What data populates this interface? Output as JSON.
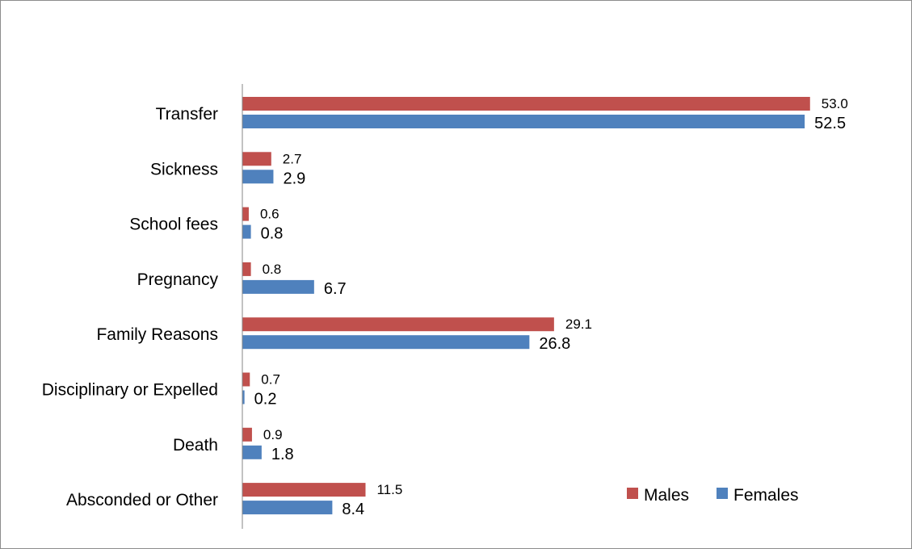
{
  "chart_data": {
    "type": "bar",
    "orientation": "horizontal",
    "categories": [
      "Transfer",
      "Sickness",
      "School fees",
      "Pregnancy",
      "Family Reasons",
      "Disciplinary or Expelled",
      "Death",
      "Absconded or Other"
    ],
    "series": [
      {
        "name": "Males",
        "color": "#c0504d",
        "values": [
          53.0,
          2.7,
          0.6,
          0.8,
          29.1,
          0.7,
          0.9,
          11.5
        ]
      },
      {
        "name": "Females",
        "color": "#4f81bd",
        "values": [
          52.5,
          2.9,
          0.8,
          6.7,
          26.8,
          0.2,
          1.8,
          8.4
        ]
      }
    ],
    "value_labels": {
      "Males": [
        "53.0",
        "2.7",
        "0.6",
        "0.8",
        "29.1",
        "0.7",
        "0.9",
        "11.5"
      ],
      "Females": [
        "52.5",
        "2.9",
        "0.8",
        "6.7",
        "26.8",
        "0.2",
        "1.8",
        "8.4"
      ]
    },
    "xlim": [
      0,
      55
    ],
    "grid": false,
    "legend_position": "bottom-right",
    "title": "",
    "xlabel": "",
    "ylabel": ""
  }
}
